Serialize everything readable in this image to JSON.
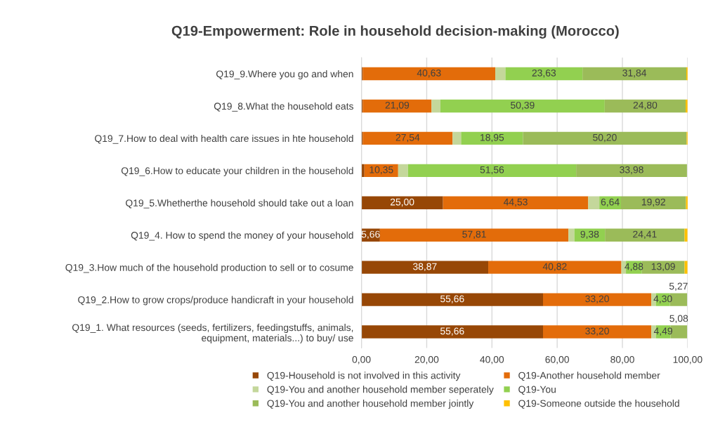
{
  "chart_data": {
    "type": "bar",
    "orientation": "horizontal",
    "stacked": true,
    "title": "Q19-Empowerment: Role in household decision-making (Morocco)",
    "categories": [
      "Q19_9.Where you go and when",
      "Q19_8.What the household eats",
      "Q19_7.How to deal with health care issues in hte household",
      "Q19_6.How to educate your children in the household",
      "Q19_5.Whetherthe household should take out a loan",
      "Q19_4. How to spend the money of your household",
      "Q19_3.How much of the household production to sell or to cosume",
      "Q19_2.How to grow crops/produce handicraft in your household",
      "Q19_1. What resources (seeds, fertilizers, feedingstuffs, animals,\nequipment, materials...) to buy/ use"
    ],
    "series": [
      {
        "name": "Q19-Household is not involved in this activity",
        "color": "#974706",
        "values": [
          0.4,
          0.4,
          0.4,
          0.9,
          25.0,
          5.66,
          38.87,
          55.66,
          55.66
        ],
        "value_labels": [
          null,
          null,
          null,
          null,
          "25,00",
          "5,66",
          "38,87",
          "55,66",
          "55,66"
        ]
      },
      {
        "name": "Q19-Another household member",
        "color": "#e36c0a",
        "values": [
          40.63,
          21.09,
          27.54,
          10.35,
          44.53,
          57.81,
          40.82,
          33.2,
          33.2
        ],
        "value_labels": [
          "40,63",
          "21,09",
          "27,54",
          "10,35",
          "44,53",
          "57,81",
          "40,82",
          "33,20",
          "33,20"
        ]
      },
      {
        "name": "Q19-You and another household member seperately",
        "color": "#c4d79b",
        "values": [
          3.1,
          2.7,
          2.6,
          3.0,
          3.4,
          1.8,
          1.4,
          1.4,
          1.4
        ],
        "value_labels": [
          null,
          null,
          null,
          null,
          null,
          null,
          null,
          null,
          null
        ]
      },
      {
        "name": "Q19-You",
        "color": "#92d050",
        "values": [
          23.63,
          50.39,
          18.95,
          51.56,
          6.64,
          9.38,
          4.88,
          4.3,
          4.49
        ],
        "value_labels": [
          "23,63",
          "50,39",
          "18,95",
          "51,56",
          "6,64",
          "9,38",
          "4,88",
          "4,30",
          "4,49"
        ]
      },
      {
        "name": "Q19-You and another household member jointly",
        "color": "#9bbb59",
        "values": [
          31.84,
          24.8,
          50.2,
          33.98,
          19.92,
          24.41,
          13.09,
          5.27,
          5.08
        ],
        "value_labels": [
          "31,84",
          "24,80",
          "50,20",
          "33,98",
          "19,92",
          "24,41",
          "13,09",
          "5,27",
          "5,08"
        ]
      },
      {
        "name": "Q19-Someone outside the household",
        "color": "#ffc000",
        "values": [
          0.4,
          0.6,
          0.3,
          null,
          0.6,
          0.9,
          0.9,
          null,
          null
        ],
        "value_labels": [
          null,
          null,
          null,
          null,
          null,
          null,
          null,
          null,
          null
        ]
      }
    ],
    "xlim": [
      0,
      100
    ],
    "xticks": [
      {
        "value": 0,
        "label": "0,00"
      },
      {
        "value": 20,
        "label": "20,00"
      },
      {
        "value": 40,
        "label": "40,00"
      },
      {
        "value": 60,
        "label": "60,00"
      },
      {
        "value": 80,
        "label": "80,00"
      },
      {
        "value": 100,
        "label": "100,00"
      }
    ],
    "grid": "x",
    "legend": "bottom"
  }
}
